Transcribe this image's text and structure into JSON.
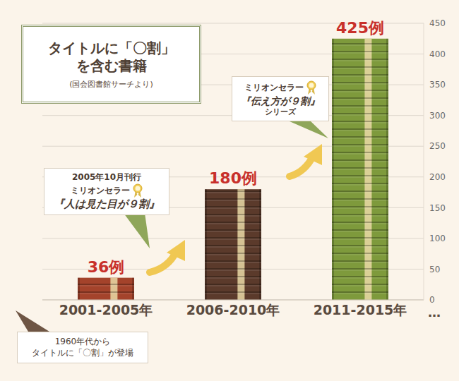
{
  "chart_data": {
    "type": "bar",
    "title": "タイトルに「〇割」を含む書籍",
    "subtitle": "(国会図書館サーチより)",
    "categories": [
      "2001-2005年",
      "2006-2010年",
      "2011-2015年"
    ],
    "values": [
      36,
      180,
      425
    ],
    "value_labels": [
      "36例",
      "180例",
      "425例"
    ],
    "data_labels": true,
    "colors": [
      "#a4432b",
      "#5b3a2b",
      "#7e9a3c"
    ],
    "ylim": [
      0,
      450
    ],
    "yticks": [
      0,
      50,
      100,
      150,
      200,
      250,
      300,
      350,
      400,
      450
    ],
    "grid": true,
    "annotations": [
      {
        "lines": [
          "2005年10月刊行",
          "ミリオンセラー",
          "『人は見た目が９割』"
        ]
      },
      {
        "lines": [
          "ミリオンセラー",
          "『伝え方が９割』",
          "シリーズ"
        ]
      },
      {
        "lines": [
          "1960年代から",
          "タイトルに「〇割」が登場"
        ]
      },
      {
        "lines": [
          "…"
        ]
      }
    ]
  }
}
